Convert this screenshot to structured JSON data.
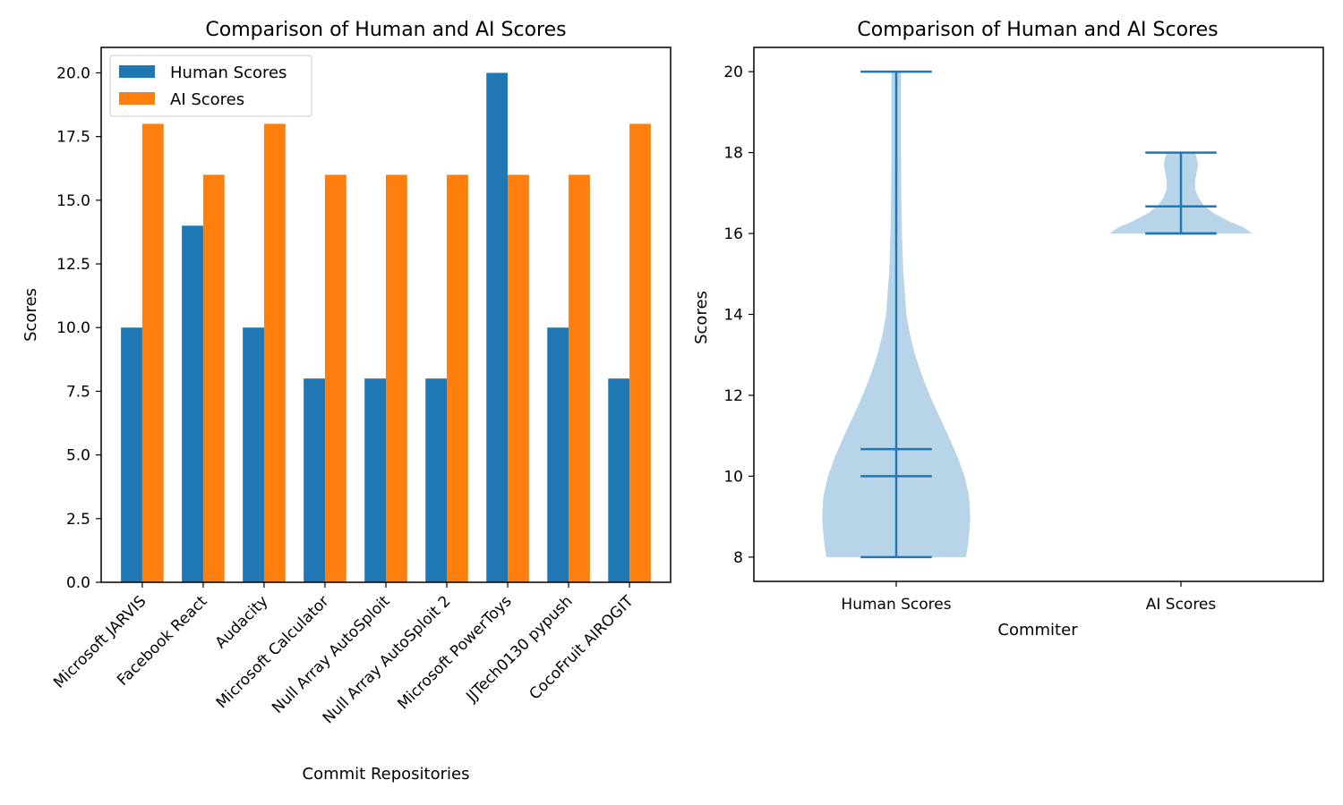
{
  "colors": {
    "human": "#1f77b4",
    "ai": "#ff7f0e",
    "violin_body": "#b8d4e8",
    "violin_lines": "#1f77b4"
  },
  "chart_data": [
    {
      "type": "bar",
      "title": "Comparison of Human and AI Scores",
      "xlabel": "Commit Repositories",
      "ylabel": "Scores",
      "ylim": [
        0,
        21
      ],
      "yticks": [
        "0.0",
        "2.5",
        "5.0",
        "7.5",
        "10.0",
        "12.5",
        "15.0",
        "17.5",
        "20.0"
      ],
      "categories": [
        "Microsoft JARVIS",
        "Facebook React",
        "Audacity",
        "Microsoft Calculator",
        "Null Array AutoSploit",
        "Null Array AutoSploit 2",
        "Microsoft PowerToys",
        "JJTech0130 pypush",
        "CocoFruit AIROGIT"
      ],
      "series": [
        {
          "name": "Human Scores",
          "values": [
            10,
            14,
            10,
            8,
            8,
            8,
            20,
            10,
            8
          ]
        },
        {
          "name": "AI Scores",
          "values": [
            18,
            16,
            18,
            16,
            16,
            16,
            16,
            16,
            18
          ]
        }
      ],
      "legend": "upper-left",
      "grid": false
    },
    {
      "type": "violin",
      "title": "Comparison of Human and AI Scores",
      "xlabel": "Commiter",
      "ylabel": "Scores",
      "ylim": [
        7.4,
        20.6
      ],
      "yticks": [
        "8",
        "10",
        "12",
        "14",
        "16",
        "18",
        "20"
      ],
      "categories": [
        "Human Scores",
        "AI Scores"
      ],
      "distributions": [
        {
          "name": "Human Scores",
          "min": 8,
          "max": 20,
          "mean": 10.67,
          "median": 10
        },
        {
          "name": "AI Scores",
          "min": 16,
          "max": 18,
          "mean": 16.67,
          "median": 16
        }
      ],
      "grid": false
    }
  ]
}
